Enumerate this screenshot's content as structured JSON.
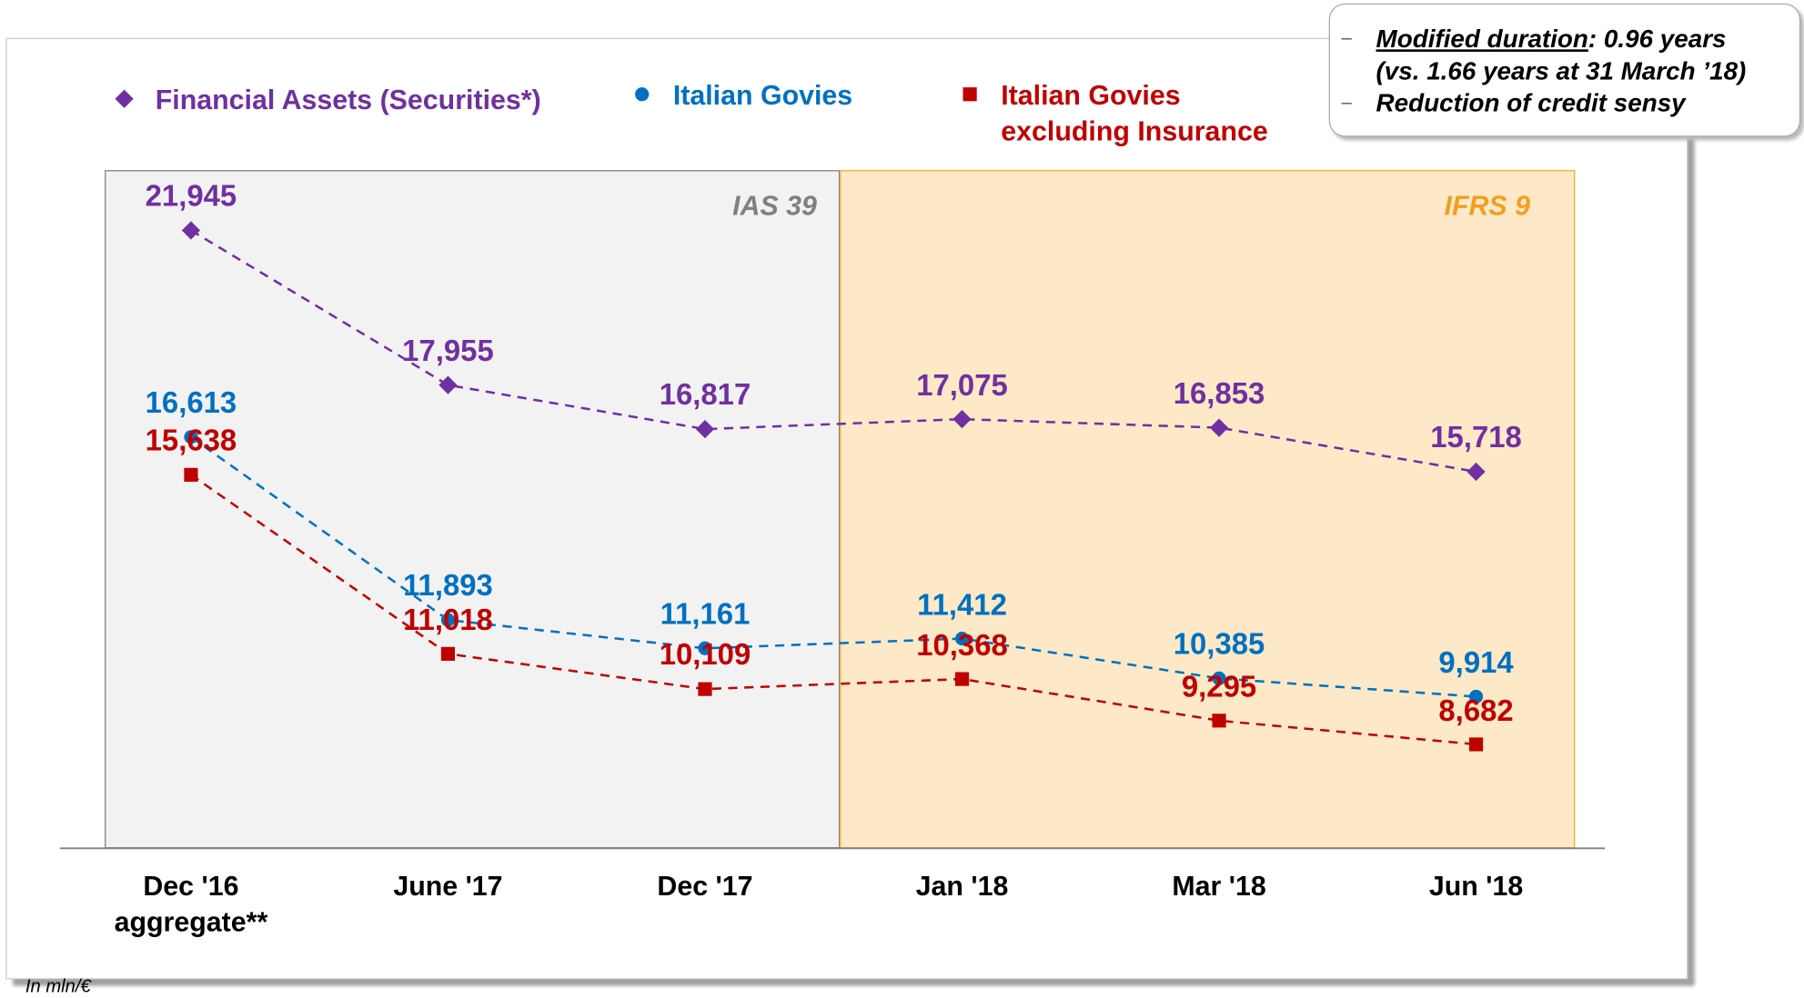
{
  "chart_data": {
    "type": "line",
    "categories": [
      "Dec '16\naggregate**",
      "June '17",
      "Dec '17",
      "Jan '18",
      "Mar '18",
      "Jun '18"
    ],
    "series": [
      {
        "name": "Financial Assets (Securities*)",
        "color": "#7030a0",
        "marker": "diamond",
        "values": [
          21945,
          17955,
          16817,
          17075,
          16853,
          15718
        ],
        "value_labels": [
          "21,945",
          "17,955",
          "16,817",
          "17,075",
          "16,853",
          "15,718"
        ]
      },
      {
        "name": "Italian Govies",
        "color": "#0070c0",
        "marker": "circle",
        "values": [
          16613,
          11893,
          11161,
          11412,
          10385,
          9914
        ],
        "value_labels": [
          "16,613",
          "11,893",
          "11,161",
          "11,412",
          "10,385",
          "9,914"
        ]
      },
      {
        "name": "Italian Govies\nexcluding Insurance",
        "color": "#c00000",
        "marker": "square",
        "values": [
          15638,
          11018,
          10109,
          10368,
          9295,
          8682
        ],
        "value_labels": [
          "15,638",
          "11,018",
          "10,109",
          "10,368",
          "9,295",
          "8,682"
        ]
      }
    ],
    "ylim": [
      6000,
      23500
    ],
    "periods": [
      "IAS 39",
      "IFRS 9"
    ],
    "note": "In mln/€"
  },
  "callout": {
    "bullets": [
      {
        "term": "Modified duration",
        "text": ": 0.96 years\n(vs. 1.66 years at 31 March ’18)"
      },
      {
        "text": "Reduction of credit sensy"
      }
    ]
  }
}
